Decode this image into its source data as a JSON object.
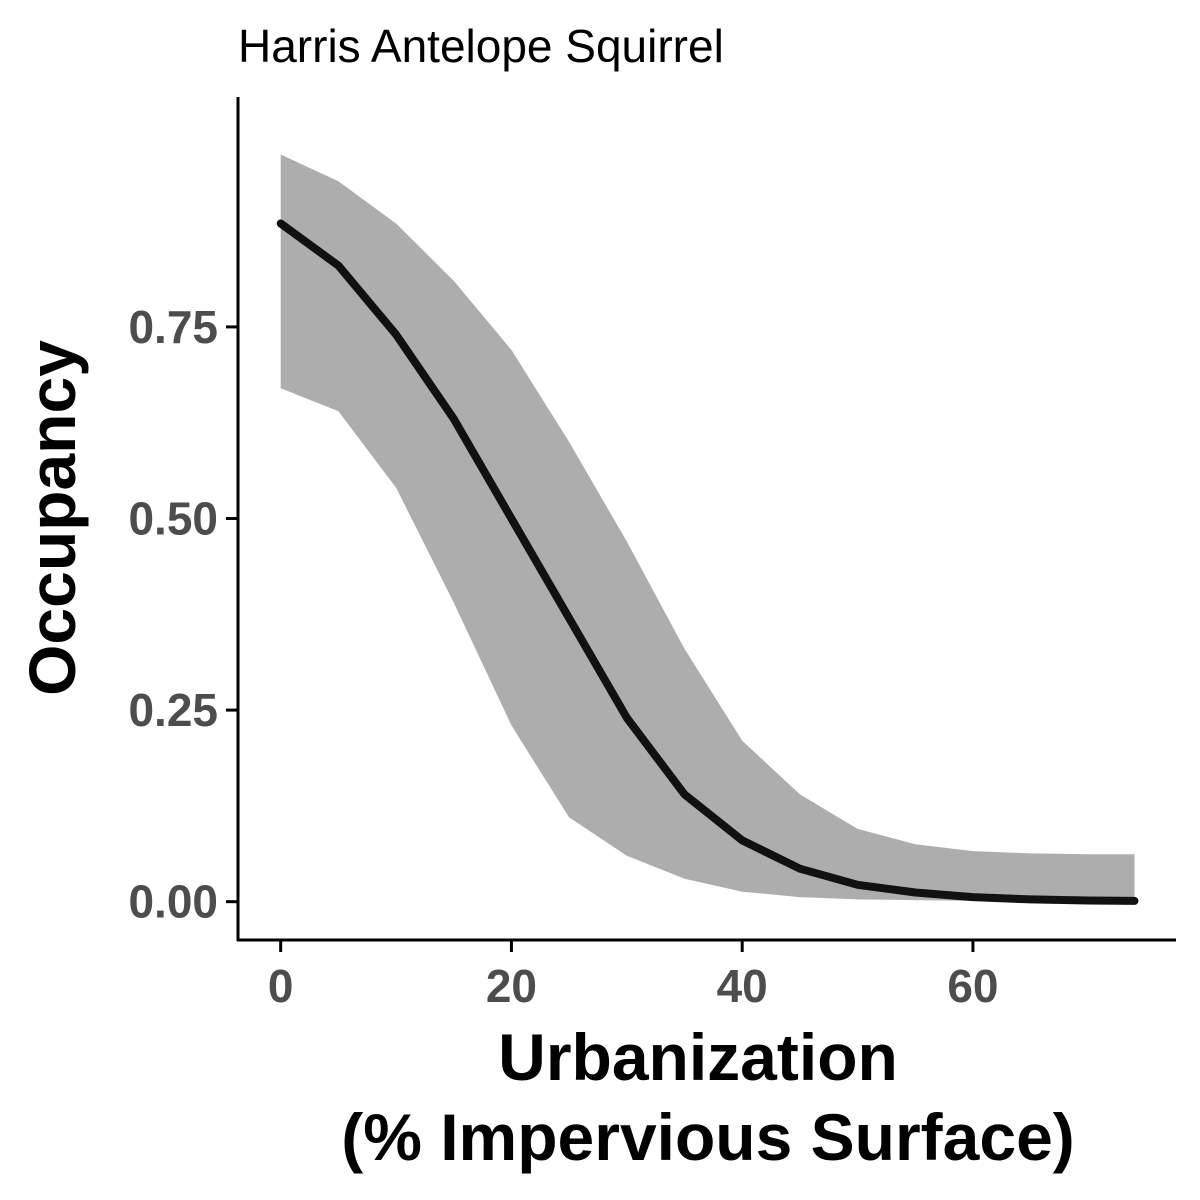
{
  "chart_data": {
    "type": "line",
    "title": "Harris Antelope Squirrel",
    "xlabel_lines": [
      "Urbanization",
      "(% Impervious Surface)"
    ],
    "ylabel": "Occupancy",
    "xlim": [
      -3.7,
      77.6
    ],
    "ylim": [
      -0.05,
      1.05
    ],
    "x_ticks": [
      0,
      20,
      40,
      60
    ],
    "x_tick_labels": [
      "0",
      "20",
      "40",
      "60"
    ],
    "y_ticks": [
      0,
      0.25,
      0.5,
      0.75
    ],
    "y_tick_labels": [
      "0.00",
      "0.25",
      "0.50",
      "0.75"
    ],
    "grid": false,
    "legend": "none",
    "colors": {
      "line": "#111111",
      "ribbon": "#adadad",
      "axis": "#000000",
      "tick_label": "#4d4d4d"
    },
    "x": [
      0,
      5,
      10,
      15,
      20,
      25,
      30,
      35,
      40,
      45,
      50,
      55,
      60,
      65,
      70,
      74
    ],
    "y": [
      0.885,
      0.83,
      0.74,
      0.63,
      0.5,
      0.37,
      0.24,
      0.14,
      0.08,
      0.043,
      0.022,
      0.012,
      0.006,
      0.003,
      0.0015,
      0.001
    ],
    "lower": [
      0.67,
      0.64,
      0.54,
      0.39,
      0.23,
      0.11,
      0.06,
      0.03,
      0.013,
      0.006,
      0.003,
      0.002,
      0.001,
      0.0008,
      0.0005,
      0.0004
    ],
    "upper": [
      0.975,
      0.94,
      0.885,
      0.81,
      0.72,
      0.6,
      0.47,
      0.33,
      0.21,
      0.14,
      0.095,
      0.075,
      0.066,
      0.063,
      0.062,
      0.062
    ]
  }
}
